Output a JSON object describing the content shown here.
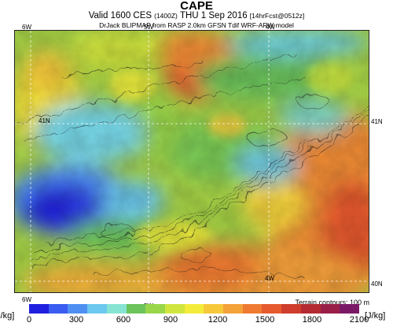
{
  "header": {
    "title": "CAPE",
    "subtitle_valid": "Valid 1600 CES",
    "subtitle_z": "(1400Z)",
    "subtitle_date": "THU 1 Sep 2016",
    "subtitle_fcst": "[14hrFcst@0512z]",
    "subtitle2": "DrJack BLIPMAP from RASP 2.0km GFSN Tdif WRF-ARW model"
  },
  "map": {
    "lon_label_6w": "6W",
    "lon_label_5w": "5W",
    "lon_label_4w": "4W",
    "lat_label_41n": "41N",
    "lat_label_40n": "40N",
    "terrain_note": "Terrain contours: 100 m"
  },
  "colorbar": {
    "unit_left": "[J/kg]",
    "unit_right": "[J/kg]",
    "ticks": [
      "0",
      "300",
      "600",
      "900",
      "1200",
      "1500",
      "1800",
      "2100"
    ],
    "colors": [
      "#2020e0",
      "#3a5cf0",
      "#4f8ff2",
      "#6cc8ee",
      "#88e4d2",
      "#6cc35c",
      "#9ad64a",
      "#d0e63e",
      "#f4ec3a",
      "#f6c83a",
      "#f4a23a",
      "#ef7a32",
      "#e65a30",
      "#cf3d2c",
      "#b42a32",
      "#9a1f48",
      "#7a1a66"
    ]
  }
}
